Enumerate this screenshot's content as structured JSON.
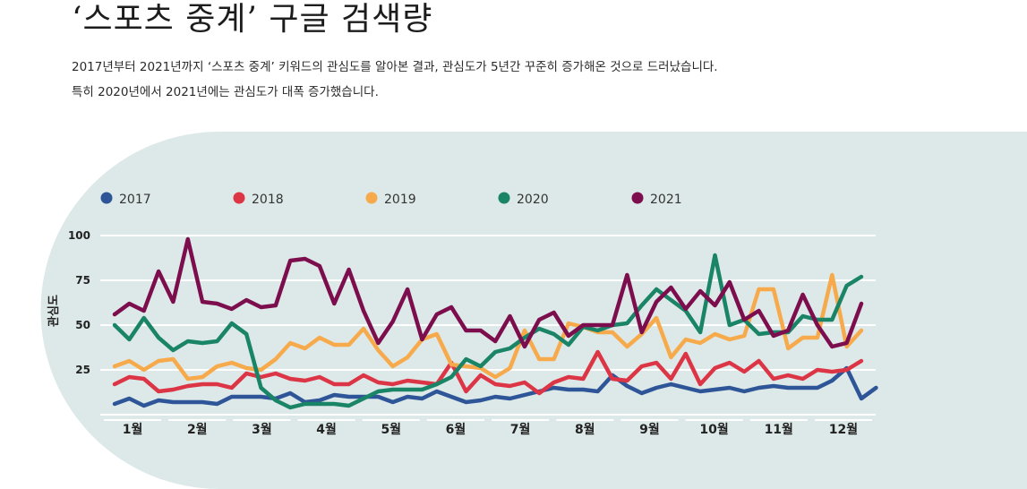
{
  "header": {
    "title": "‘스포츠 중계’ 구글 검색량",
    "desc_line1": "2017년부터 2021년까지 ‘스포츠 중계’ 키워드의 관심도를 알아본 결과, 관심도가 5년간 꾸준히 증가해온 것으로 드러났습니다.",
    "desc_line2": "특히 2020년에서 2021년에는 관심도가 대폭 증가했습니다."
  },
  "colors": {
    "background_panel": "#dde9e8",
    "gridline": "#ffffff",
    "s2017": "#2e5597",
    "s2018": "#dc3545",
    "s2019": "#f7aa4b",
    "s2020": "#1a8466",
    "s2021": "#7d0e4e"
  },
  "chart_data": {
    "type": "line",
    "title": "",
    "xlabel": "",
    "ylabel": "관심도",
    "ylim": [
      0,
      100
    ],
    "yticks": [
      25,
      50,
      75,
      100
    ],
    "x_tick_labels": [
      "1월",
      "2월",
      "3월",
      "4월",
      "5월",
      "6월",
      "7월",
      "8월",
      "9월",
      "10월",
      "11월",
      "12월"
    ],
    "x_range_weeks": [
      0,
      51
    ],
    "grid": true,
    "legend_placement": "top-left",
    "series": [
      {
        "name": "2017",
        "values": [
          6,
          9,
          5,
          8,
          7,
          7,
          7,
          6,
          10,
          10,
          10,
          9,
          12,
          7,
          8,
          11,
          10,
          10,
          10,
          7,
          10,
          9,
          13,
          10,
          7,
          8,
          10,
          9,
          11,
          13,
          15,
          14,
          14,
          13,
          22,
          16,
          12,
          15,
          17,
          15,
          13,
          14,
          15,
          13,
          15,
          16,
          15,
          15,
          15,
          19,
          26,
          9,
          15
        ]
      },
      {
        "name": "2018",
        "values": [
          17,
          21,
          20,
          13,
          14,
          16,
          17,
          17,
          15,
          23,
          21,
          23,
          20,
          19,
          21,
          17,
          17,
          22,
          18,
          17,
          19,
          18,
          17,
          29,
          13,
          22,
          17,
          16,
          18,
          12,
          18,
          21,
          20,
          35,
          20,
          19,
          27,
          29,
          20,
          34,
          17,
          26,
          29,
          24,
          30,
          20,
          22,
          20,
          25,
          24,
          25,
          30
        ]
      },
      {
        "name": "2019",
        "values": [
          27,
          30,
          25,
          30,
          31,
          20,
          21,
          27,
          29,
          26,
          25,
          31,
          40,
          37,
          43,
          39,
          39,
          48,
          36,
          27,
          32,
          42,
          45,
          28,
          27,
          26,
          21,
          26,
          47,
          31,
          31,
          51,
          49,
          46,
          46,
          38,
          45,
          54,
          32,
          42,
          40,
          45,
          42,
          44,
          70,
          70,
          37,
          43,
          43,
          78,
          38,
          47
        ]
      },
      {
        "name": "2020",
        "values": [
          50,
          42,
          54,
          43,
          36,
          41,
          40,
          41,
          51,
          45,
          15,
          8,
          4,
          6,
          6,
          6,
          5,
          9,
          13,
          14,
          14,
          14,
          17,
          21,
          31,
          27,
          35,
          37,
          43,
          48,
          45,
          39,
          49,
          47,
          50,
          51,
          61,
          70,
          64,
          58,
          46,
          89,
          50,
          53,
          45,
          46,
          46,
          55,
          53,
          53,
          72,
          77
        ]
      },
      {
        "name": "2021",
        "values": [
          56,
          62,
          58,
          80,
          63,
          98,
          63,
          62,
          59,
          64,
          60,
          61,
          86,
          87,
          83,
          62,
          81,
          58,
          40,
          52,
          70,
          42,
          56,
          60,
          47,
          47,
          41,
          55,
          38,
          53,
          57,
          44,
          50,
          50,
          50,
          78,
          46,
          63,
          71,
          59,
          69,
          61,
          74,
          53,
          58,
          44,
          47,
          67,
          50,
          38,
          40,
          62
        ]
      }
    ]
  }
}
